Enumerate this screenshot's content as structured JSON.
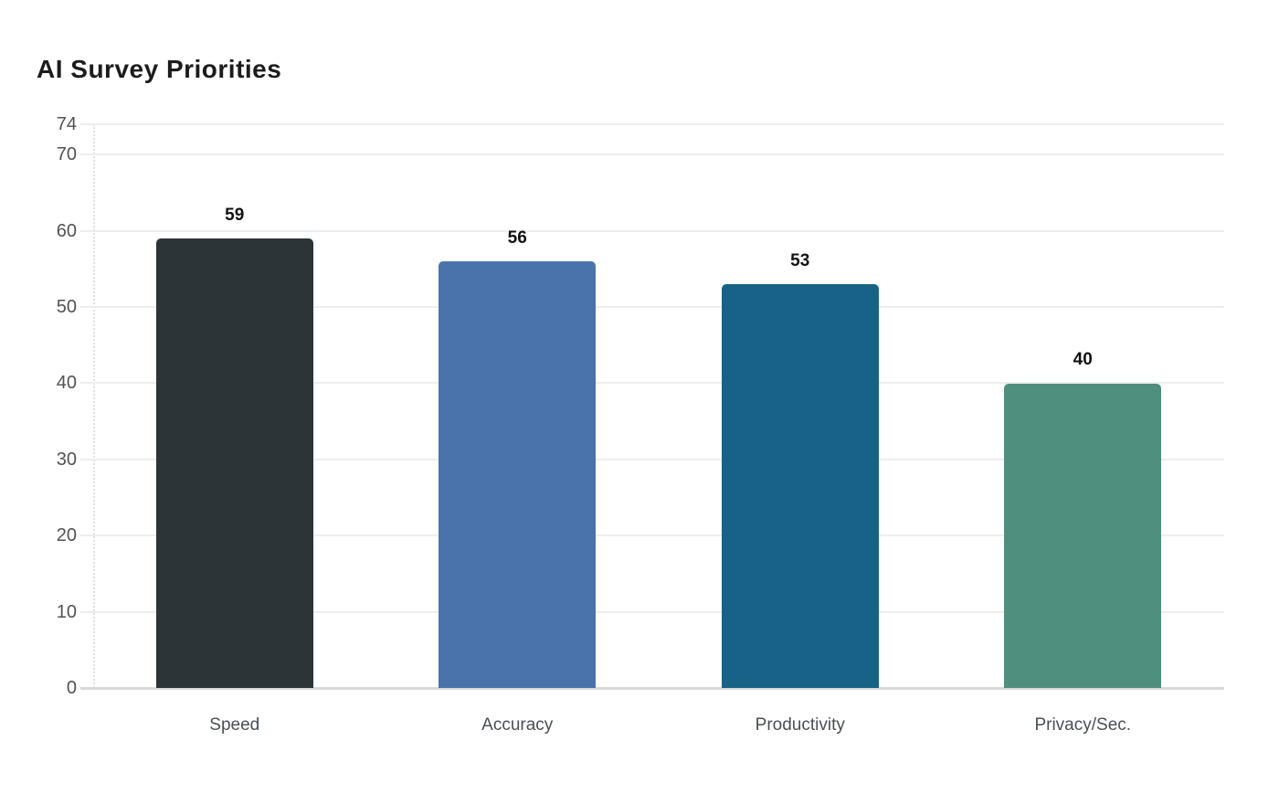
{
  "page": {
    "background": "#ffffff"
  },
  "chart_data": {
    "type": "bar",
    "title": "AI Survey Priorities",
    "categories": [
      "Speed",
      "Accuracy",
      "Productivity",
      "Privacy/Sec."
    ],
    "values": [
      59,
      56,
      53,
      40
    ],
    "value_labels": [
      "59",
      "56",
      "53",
      "40"
    ],
    "bar_colors": [
      "#2b3538",
      "#4a73ab",
      "#176387",
      "#4f8f7e"
    ],
    "yticks": [
      0,
      10,
      20,
      30,
      40,
      50,
      60,
      70,
      74
    ],
    "ylim": [
      0,
      74
    ],
    "xlabel": "",
    "ylabel": "",
    "grid": true,
    "legend_position": "none",
    "colors": {
      "title_text": "#1c1c1c",
      "tick_text": "#525252",
      "category_text": "#4a4f52",
      "value_text": "#111111",
      "gridline": "#ededed",
      "axis_line": "#d9d9d9",
      "y_axis_dotted": "#e0e0e0",
      "background": "#ffffff"
    }
  }
}
